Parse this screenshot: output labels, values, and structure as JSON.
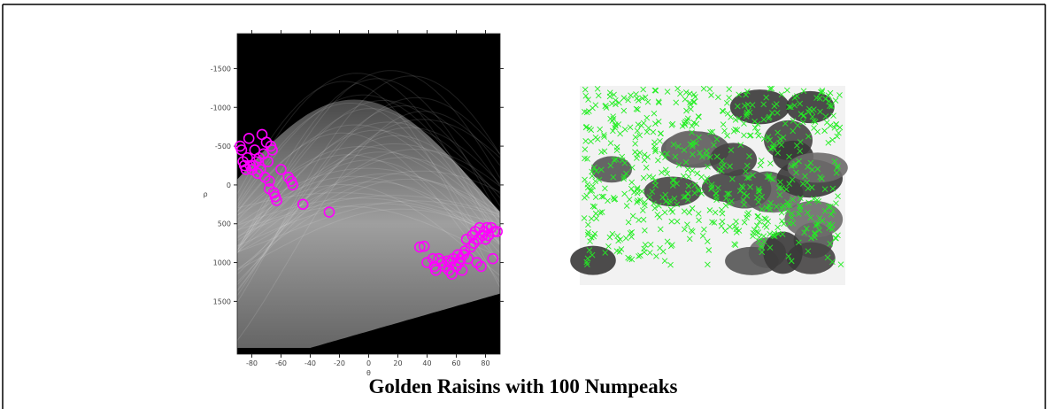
{
  "chart_data": {
    "type": "scatter",
    "x_label": "θ",
    "y_label": "ρ",
    "xlim": [
      -90,
      90
    ],
    "ylim": [
      -1950,
      2180
    ],
    "y_direction": "reverse",
    "xticks": [
      -80,
      -60,
      -40,
      -20,
      0,
      20,
      40,
      60,
      80
    ],
    "yticks": [
      -1500,
      -1000,
      -500,
      0,
      500,
      1000,
      1500
    ],
    "color": "#ff00ff",
    "x": [
      -88,
      -87,
      -86,
      -85,
      -84,
      -83,
      -82,
      -81,
      -80,
      -79,
      -78,
      -77,
      -76,
      -75,
      -74,
      -73,
      -72,
      -71,
      -70,
      -69,
      -68,
      -68,
      -67,
      -66,
      -65,
      -64,
      -63,
      -60,
      -55,
      -53,
      -52,
      -45,
      -27,
      35,
      38,
      40,
      44,
      45,
      46,
      48,
      50,
      52,
      54,
      55,
      56,
      57,
      58,
      60,
      61,
      62,
      63,
      64,
      65,
      66,
      67,
      68,
      70,
      71,
      72,
      73,
      74,
      75,
      76,
      77,
      78,
      79,
      80,
      81,
      82,
      84,
      85,
      86,
      88
    ],
    "values": [
      -500,
      -450,
      -300,
      -250,
      -200,
      -350,
      -600,
      -250,
      -200,
      -250,
      -450,
      -300,
      -150,
      -350,
      -200,
      -650,
      -400,
      -100,
      -550,
      -300,
      -50,
      50,
      -500,
      -450,
      100,
      150,
      200,
      -200,
      -100,
      -50,
      0,
      250,
      350,
      800,
      790,
      1000,
      950,
      1050,
      1100,
      950,
      1000,
      1050,
      980,
      1100,
      1000,
      1150,
      950,
      1050,
      900,
      1000,
      950,
      1100,
      900,
      850,
      700,
      950,
      800,
      650,
      750,
      600,
      1000,
      700,
      550,
      1050,
      650,
      600,
      700,
      550,
      650,
      550,
      950,
      600,
      600
    ]
  },
  "caption": "Golden Raisins with 100 Numpeaks"
}
